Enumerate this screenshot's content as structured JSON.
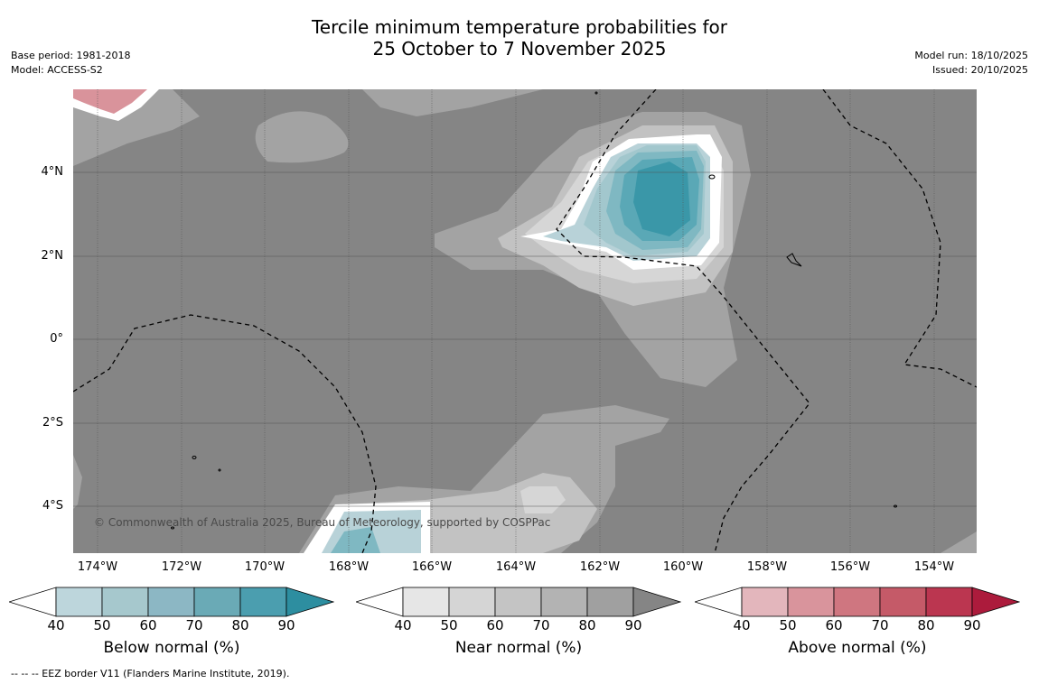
{
  "title": {
    "line1": "Tercile minimum temperature probabilities for",
    "line2": "25 October to 7 November 2025"
  },
  "meta_left": {
    "base_period": "Base period: 1981-2018",
    "model": "Model: ACCESS-S2"
  },
  "meta_right": {
    "model_run": "Model run: 18/10/2025",
    "issued": "Issued: 20/10/2025"
  },
  "map": {
    "lat_labels": [
      "4°N",
      "2°N",
      "0°",
      "2°S",
      "4°S"
    ],
    "lon_labels": [
      "174°W",
      "172°W",
      "170°W",
      "168°W",
      "166°W",
      "164°W",
      "162°W",
      "160°W",
      "158°W",
      "156°W",
      "154°W"
    ],
    "copyright": "© Commonwealth of Australia 2025, Bureau of Meteorology, supported by COSPPac",
    "colors": {
      "ocean_base": "#858585",
      "near_50": "#a3a3a3",
      "near_40": "#c2c2c2",
      "near_low": "#d6d6d6",
      "below_40": "#b8d2d8",
      "below_50": "#a2c7cd",
      "below_60": "#7fb8c2",
      "below_70": "#5aa8b6",
      "below_80": "#3a97a8",
      "above_50": "#d9939b",
      "above_40": "#e3b2b8"
    }
  },
  "colorbars": [
    {
      "name": "below",
      "title": "Below normal (%)",
      "ticks": [
        "40",
        "50",
        "60",
        "70",
        "80",
        "90"
      ],
      "colors": [
        "#bdd6dc",
        "#a6c8cd",
        "#8cb7c4",
        "#6aaab6",
        "#4b9eaf"
      ],
      "max_color": "#2d8ea0"
    },
    {
      "name": "near",
      "title": "Near normal (%)",
      "ticks": [
        "40",
        "50",
        "60",
        "70",
        "80",
        "90"
      ],
      "colors": [
        "#e6e6e6",
        "#d5d5d5",
        "#c4c4c4",
        "#b3b3b3",
        "#a0a0a0"
      ],
      "max_color": "#858585"
    },
    {
      "name": "above",
      "title": "Above normal (%)",
      "ticks": [
        "40",
        "50",
        "60",
        "70",
        "80",
        "90"
      ],
      "colors": [
        "#e3b6bc",
        "#d9949c",
        "#cf7680",
        "#c55a68",
        "#bb3650"
      ],
      "max_color": "#ac1b3c"
    }
  ],
  "footnote": "-- -- -- EEZ border V11 (Flanders Marine Institute, 2019)."
}
